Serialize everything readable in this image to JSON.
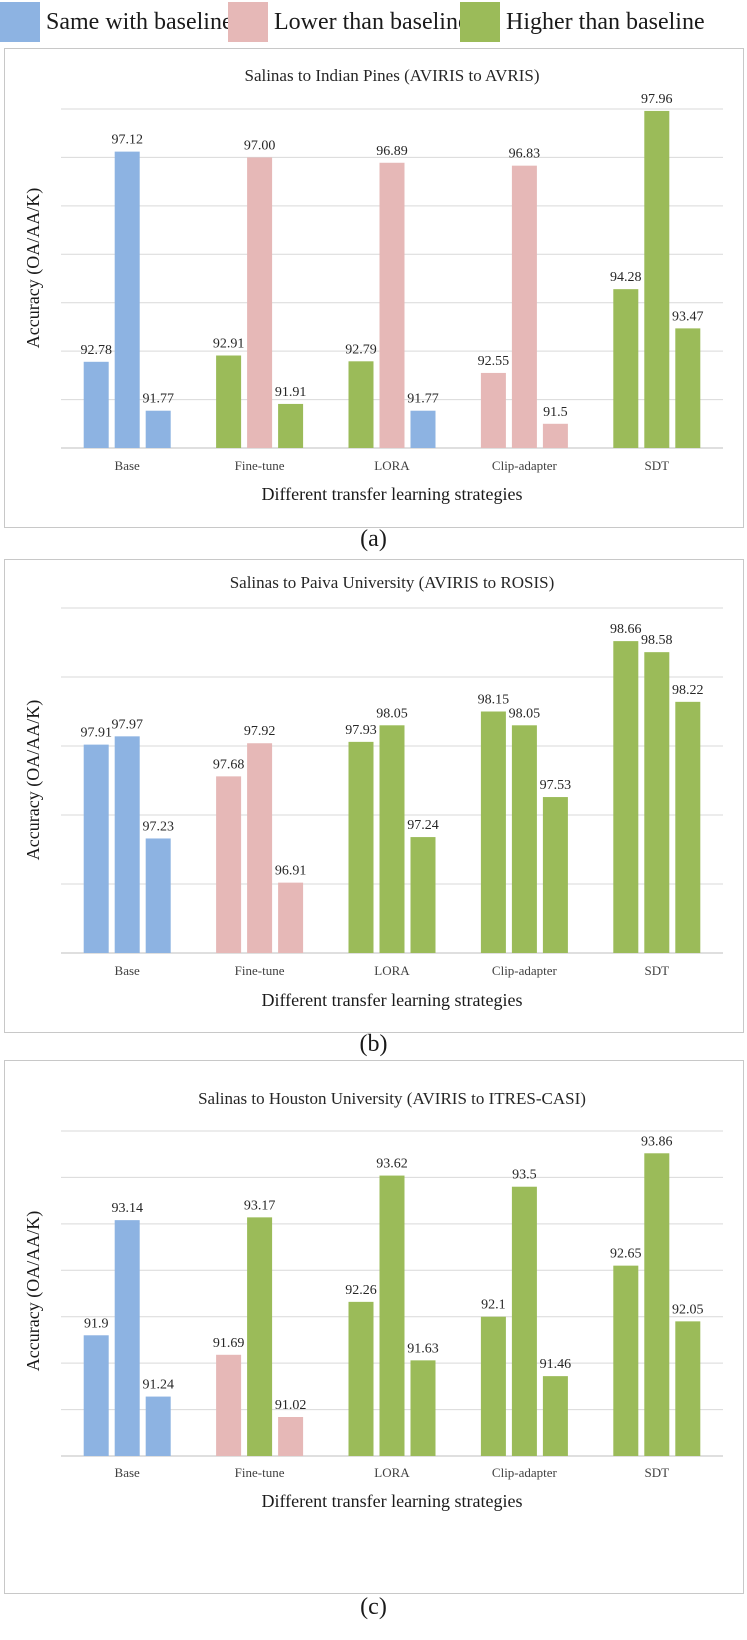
{
  "legend": [
    {
      "label": "Same with baseline",
      "color": "#8db3e2"
    },
    {
      "label": "Lower than baseline",
      "color": "#e6b8b7"
    },
    {
      "label": "Higher than baseline",
      "color": "#9bbb59"
    }
  ],
  "colors": {
    "same": "#8db3e2",
    "lower": "#e6b8b7",
    "higher": "#9bbb59",
    "grid": "#d9d9d9"
  },
  "chart_data": [
    {
      "type": "bar",
      "title": "Salinas to Indian Pines (AVIRIS to AVRIS)",
      "xlabel": "Different transfer learning strategies",
      "ylabel": "Accuracy (OA/AA/K)",
      "categories": [
        "Base",
        "Fine-tune",
        "LORA",
        "Clip-adapter",
        "SDT"
      ],
      "ylim": [
        91.0,
        98.0
      ],
      "grid_step": 1.0,
      "series": [
        {
          "name": "OA",
          "values": [
            92.78,
            92.91,
            92.79,
            92.55,
            94.28
          ],
          "labels": [
            "92.78",
            "92.91",
            "92.79",
            "92.55",
            "94.28"
          ],
          "status": [
            "same",
            "higher",
            "higher",
            "lower",
            "higher"
          ]
        },
        {
          "name": "AA",
          "values": [
            97.12,
            97.0,
            96.89,
            96.83,
            97.96
          ],
          "labels": [
            "97.12",
            "97.00",
            "96.89",
            "96.83",
            "97.96"
          ],
          "status": [
            "same",
            "lower",
            "lower",
            "lower",
            "higher"
          ]
        },
        {
          "name": "K",
          "values": [
            91.77,
            91.91,
            91.77,
            91.5,
            93.47
          ],
          "labels": [
            "91.77",
            "91.91",
            "91.77",
            "91.5",
            "93.47"
          ],
          "status": [
            "same",
            "higher",
            "same",
            "lower",
            "higher"
          ]
        }
      ],
      "panel_label": "(a)"
    },
    {
      "type": "bar",
      "title": "Salinas to Paiva University (AVIRIS to ROSIS)",
      "xlabel": "Different transfer learning strategies",
      "ylabel": "Accuracy (OA/AA/K)",
      "categories": [
        "Base",
        "Fine-tune",
        "LORA",
        "Clip-adapter",
        "SDT"
      ],
      "ylim": [
        96.4,
        98.9
      ],
      "grid_step": 0.5,
      "series": [
        {
          "name": "OA",
          "values": [
            97.91,
            97.68,
            97.93,
            98.15,
            98.66
          ],
          "labels": [
            "97.91",
            "97.68",
            "97.93",
            "98.15",
            "98.66"
          ],
          "status": [
            "same",
            "lower",
            "higher",
            "higher",
            "higher"
          ]
        },
        {
          "name": "AA",
          "values": [
            97.97,
            97.92,
            98.05,
            98.05,
            98.58
          ],
          "labels": [
            "97.97",
            "97.92",
            "98.05",
            "98.05",
            "98.58"
          ],
          "status": [
            "same",
            "lower",
            "higher",
            "higher",
            "higher"
          ]
        },
        {
          "name": "K",
          "values": [
            97.23,
            96.91,
            97.24,
            97.53,
            98.22
          ],
          "labels": [
            "97.23",
            "96.91",
            "97.24",
            "97.53",
            "98.22"
          ],
          "status": [
            "same",
            "lower",
            "higher",
            "higher",
            "higher"
          ]
        }
      ],
      "panel_label": "(b)"
    },
    {
      "type": "bar",
      "title": "Salinas to Houston University (AVIRIS to ITRES-CASI)",
      "xlabel": "Different transfer learning strategies",
      "ylabel": "Accuracy (OA/AA/K)",
      "categories": [
        "Base",
        "Fine-tune",
        "LORA",
        "Clip-adapter",
        "SDT"
      ],
      "ylim": [
        90.6,
        94.1
      ],
      "grid_step": 0.5,
      "series": [
        {
          "name": "OA",
          "values": [
            91.9,
            91.69,
            92.26,
            92.1,
            92.65
          ],
          "labels": [
            "91.9",
            "91.69",
            "92.26",
            "92.1",
            "92.65"
          ],
          "status": [
            "same",
            "lower",
            "higher",
            "higher",
            "higher"
          ]
        },
        {
          "name": "AA",
          "values": [
            93.14,
            93.17,
            93.62,
            93.5,
            93.86
          ],
          "labels": [
            "93.14",
            "93.17",
            "93.62",
            "93.5",
            "93.86"
          ],
          "status": [
            "same",
            "higher",
            "higher",
            "higher",
            "higher"
          ]
        },
        {
          "name": "K",
          "values": [
            91.24,
            91.02,
            91.63,
            91.46,
            92.05
          ],
          "labels": [
            "91.24",
            "91.02",
            "91.63",
            "91.46",
            "92.05"
          ],
          "status": [
            "same",
            "lower",
            "higher",
            "higher",
            "higher"
          ]
        }
      ],
      "panel_label": "(c)"
    }
  ]
}
